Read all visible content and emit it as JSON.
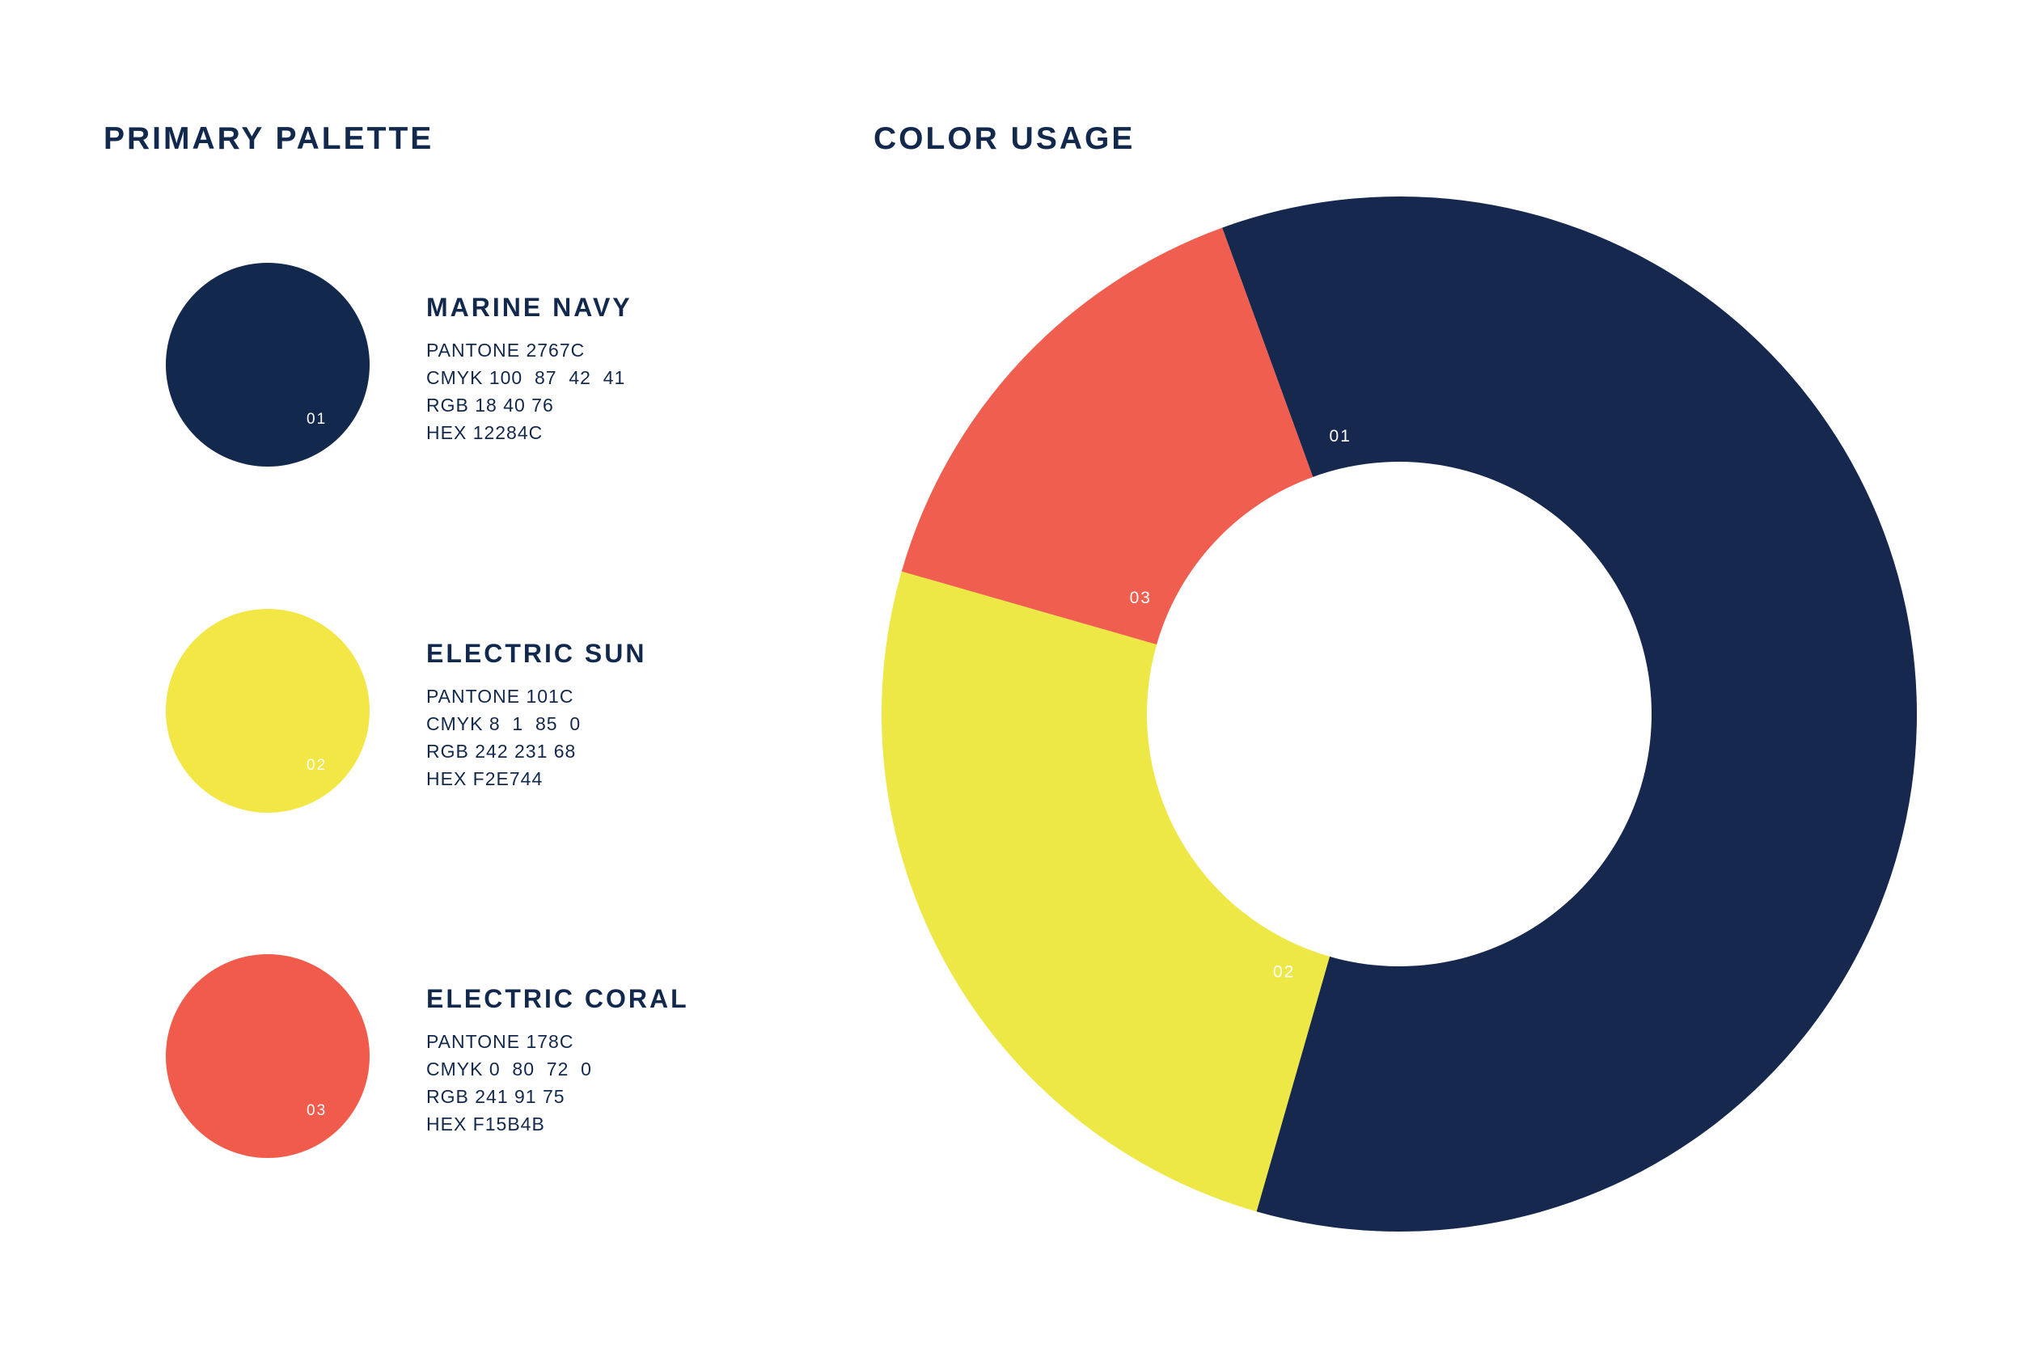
{
  "titles": {
    "palette": "PRIMARY PALETTE",
    "usage": "COLOR USAGE"
  },
  "swatches": [
    {
      "number": "01",
      "name": "MARINE NAVY",
      "pantone": "PANTONE 2767C",
      "cmyk": "CMYK 100  87  42  41",
      "rgb": "RGB 18 40 76",
      "hex": "HEX 12284C",
      "color": "#12284C"
    },
    {
      "number": "02",
      "name": "ELECTRIC SUN",
      "pantone": "PANTONE 101C",
      "cmyk": "CMYK 8  1  85  0",
      "rgb": "RGB 242 231 68",
      "hex": "HEX F2E744",
      "color": "#F2E744"
    },
    {
      "number": "03",
      "name": "ELECTRIC CORAL",
      "pantone": "PANTONE 178C",
      "cmyk": "CMYK 0  80  72  0",
      "rgb": "RGB 241 91 75",
      "hex": "HEX F15B4B",
      "color": "#F15B4B"
    }
  ],
  "chart_data": {
    "type": "pie",
    "style": "donut",
    "start_angle_deg": -20,
    "direction": "clockwise",
    "slices": [
      {
        "label": "01",
        "value": 60,
        "color": "#16284E"
      },
      {
        "label": "02",
        "value": 25,
        "color": "#EDE845"
      },
      {
        "label": "03",
        "value": 15,
        "color": "#F05E4F"
      }
    ]
  }
}
